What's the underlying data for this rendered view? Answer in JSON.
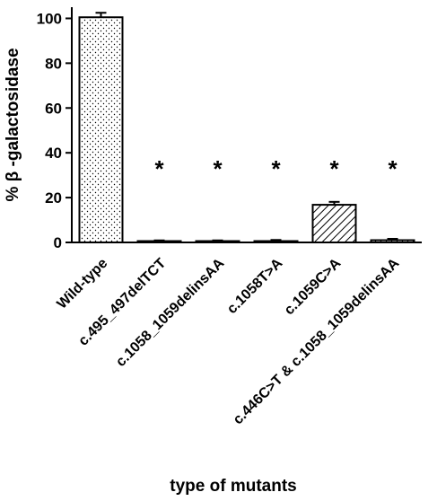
{
  "chart_data": {
    "type": "bar",
    "categories": [
      "Wild-type",
      "c.495_497delTCT",
      "c.1058_1059delinsAA",
      "c.1058T>A",
      "c.1059C>A",
      "c.446C>T & c.1058_1059delinsAA"
    ],
    "values": [
      100.5,
      0.5,
      0.5,
      0.6,
      16.8,
      1.0
    ],
    "errors": [
      2.0,
      0.4,
      0.4,
      0.5,
      1.3,
      0.6
    ],
    "patterns": [
      "dots",
      "dots",
      "dots",
      "dots",
      "hatch",
      "dots"
    ],
    "significance": [
      "",
      "*",
      "*",
      "*",
      "*",
      "*"
    ],
    "xlabel": "type of mutants",
    "ylabel": "% β -galactosidase",
    "ylim": [
      0,
      105
    ],
    "yticks": [
      0,
      20,
      40,
      60,
      80,
      100
    ],
    "yticklabels": [
      "0",
      "20",
      "40",
      "60",
      "80",
      "100"
    ],
    "grid": false,
    "colors": {
      "bar_fill": "#ffffff",
      "stroke": "#000000",
      "pattern": "#000000"
    }
  }
}
